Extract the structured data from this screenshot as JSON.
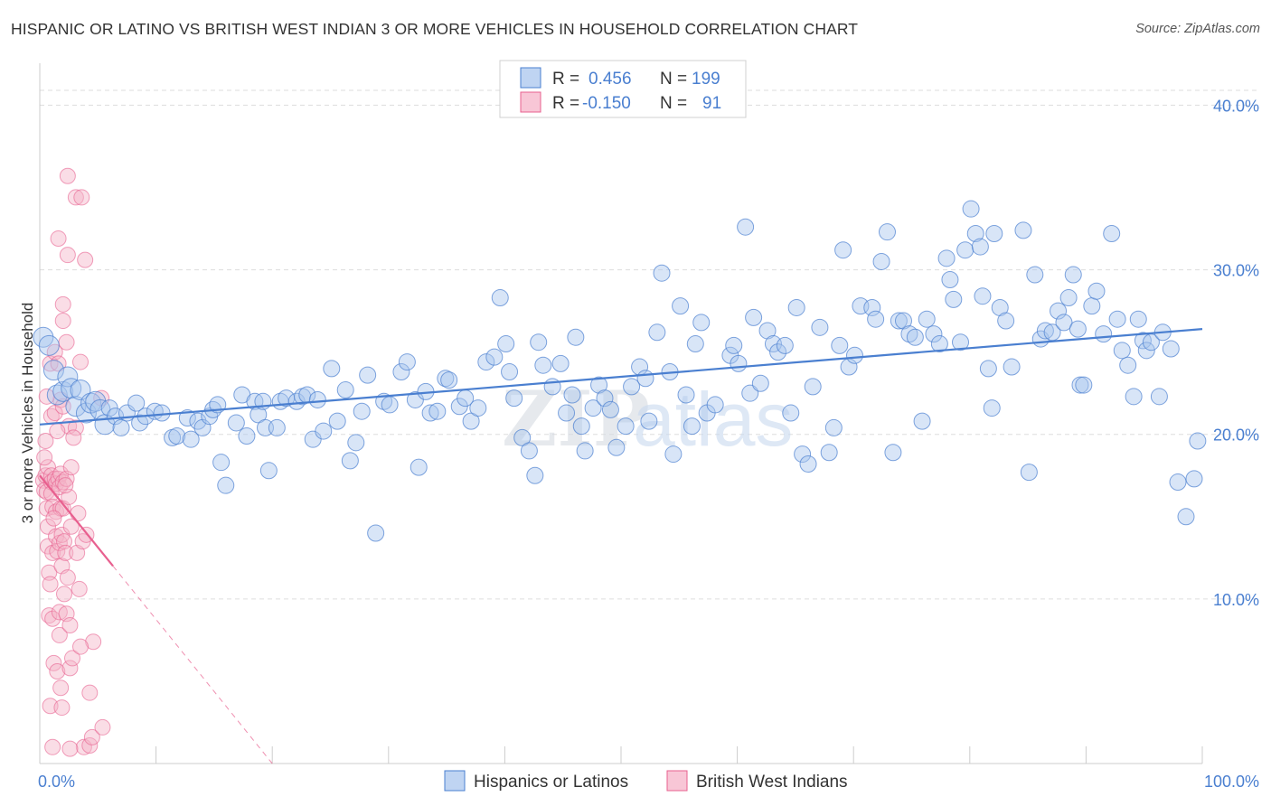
{
  "title": "HISPANIC OR LATINO VS BRITISH WEST INDIAN 3 OR MORE VEHICLES IN HOUSEHOLD CORRELATION CHART",
  "source": "Source: ZipAtlas.com",
  "watermark": {
    "zip": "ZIP",
    "atlas": "atlas"
  },
  "colors": {
    "blue": "#4a7fd0",
    "blue_fill": "#a9c6ee",
    "pink": "#e8608f",
    "pink_fill": "#f5b3c8",
    "grid": "#dddddd"
  },
  "legend": {
    "rows": [
      {
        "r_label": "R =",
        "r_value": "0.456",
        "n_label": "N =",
        "n_value": "199"
      },
      {
        "r_label": "R =",
        "r_value": "-0.150",
        "n_label": "N =",
        "n_value": "91"
      }
    ]
  },
  "bottom_legend": [
    "Hispanics or Latinos",
    "British West Indians"
  ],
  "chart_data": {
    "type": "scatter",
    "title": "HISPANIC OR LATINO VS BRITISH WEST INDIAN 3 OR MORE VEHICLES IN HOUSEHOLD CORRELATION CHART",
    "xlabel": "",
    "ylabel": "3 or more Vehicles in Household",
    "xlim": [
      0,
      100
    ],
    "ylim": [
      0,
      42
    ],
    "x_tick_labels": [
      "0.0%",
      "100.0%"
    ],
    "y_ticks": [
      10,
      20,
      30,
      40
    ],
    "y_tick_labels": [
      "10.0%",
      "20.0%",
      "30.0%",
      "40.0%"
    ],
    "grid": true,
    "legend_position": "top-center",
    "series": [
      {
        "name": "Hispanics or Latinos",
        "color": "#4a7fd0",
        "r": 0.456,
        "n": 199,
        "trend": {
          "x": [
            0,
            100
          ],
          "y": [
            20.6,
            26.4
          ]
        },
        "points": [
          [
            0.3,
            25.9
          ],
          [
            0.8,
            25.4
          ],
          [
            1.2,
            23.9
          ],
          [
            1.5,
            22.4
          ],
          [
            2,
            22.6
          ],
          [
            2.4,
            23.5
          ],
          [
            2.7,
            22.8
          ],
          [
            3.1,
            21.7
          ],
          [
            3.5,
            22.7
          ],
          [
            4,
            21.3
          ],
          [
            4.4,
            21.9
          ],
          [
            4.8,
            22
          ],
          [
            5.2,
            21.5
          ],
          [
            5.6,
            20.6
          ],
          [
            6,
            21.6
          ],
          [
            6.5,
            21.1
          ],
          [
            7,
            20.4
          ],
          [
            7.5,
            21.3
          ],
          [
            8.3,
            21.9
          ],
          [
            8.6,
            20.7
          ],
          [
            9.1,
            21.1
          ],
          [
            9.9,
            21.4
          ],
          [
            10.5,
            21.3
          ],
          [
            11.4,
            19.8
          ],
          [
            11.8,
            19.9
          ],
          [
            12.7,
            21
          ],
          [
            13,
            19.7
          ],
          [
            13.6,
            20.8
          ],
          [
            14,
            20.4
          ],
          [
            14.6,
            21.1
          ],
          [
            14.9,
            21.5
          ],
          [
            15.3,
            21.8
          ],
          [
            15.6,
            18.3
          ],
          [
            16,
            16.9
          ],
          [
            16.9,
            20.7
          ],
          [
            17.4,
            22.4
          ],
          [
            17.8,
            19.9
          ],
          [
            18.5,
            22
          ],
          [
            18.8,
            21.2
          ],
          [
            19.2,
            22
          ],
          [
            19.4,
            20.4
          ],
          [
            19.7,
            17.8
          ],
          [
            20.4,
            20.4
          ],
          [
            20.7,
            22
          ],
          [
            21.2,
            22.2
          ],
          [
            22.1,
            22
          ],
          [
            22.6,
            22.3
          ],
          [
            23,
            22.4
          ],
          [
            23.5,
            19.7
          ],
          [
            23.9,
            22.1
          ],
          [
            24.4,
            20.2
          ],
          [
            25.1,
            24
          ],
          [
            25.6,
            20.8
          ],
          [
            26.3,
            22.7
          ],
          [
            26.7,
            18.4
          ],
          [
            27.2,
            19.5
          ],
          [
            27.7,
            21.4
          ],
          [
            28.2,
            23.6
          ],
          [
            28.9,
            14
          ],
          [
            29.6,
            22
          ],
          [
            30.1,
            21.8
          ],
          [
            31.1,
            23.8
          ],
          [
            31.6,
            24.4
          ],
          [
            32.3,
            22.1
          ],
          [
            32.6,
            18
          ],
          [
            33.2,
            22.6
          ],
          [
            33.6,
            21.3
          ],
          [
            34.2,
            21.4
          ],
          [
            34.9,
            23.4
          ],
          [
            35.2,
            23.3
          ],
          [
            36.1,
            21.7
          ],
          [
            36.6,
            22.2
          ],
          [
            37.1,
            20.8
          ],
          [
            37.7,
            21.6
          ],
          [
            38.4,
            24.4
          ],
          [
            39.1,
            24.7
          ],
          [
            39.6,
            28.3
          ],
          [
            40.1,
            25.5
          ],
          [
            40.4,
            23.8
          ],
          [
            40.8,
            22.2
          ],
          [
            41.5,
            19.8
          ],
          [
            42.1,
            19
          ],
          [
            42.6,
            17.5
          ],
          [
            42.9,
            25.6
          ],
          [
            43.3,
            24.2
          ],
          [
            44.1,
            22.9
          ],
          [
            44.8,
            24.3
          ],
          [
            45.3,
            21.3
          ],
          [
            45.8,
            22.4
          ],
          [
            46.1,
            25.9
          ],
          [
            46.6,
            20.5
          ],
          [
            46.9,
            19
          ],
          [
            47.6,
            21.6
          ],
          [
            48.1,
            23
          ],
          [
            48.6,
            22.2
          ],
          [
            49.1,
            21.5
          ],
          [
            49.6,
            19.2
          ],
          [
            50.4,
            20.5
          ],
          [
            50.9,
            22.9
          ],
          [
            51.6,
            24.1
          ],
          [
            52.1,
            23.4
          ],
          [
            52.4,
            20.8
          ],
          [
            53.1,
            26.2
          ],
          [
            53.5,
            29.8
          ],
          [
            54.2,
            23.8
          ],
          [
            54.5,
            18.8
          ],
          [
            55.1,
            27.8
          ],
          [
            55.6,
            22.4
          ],
          [
            56.1,
            20.5
          ],
          [
            56.4,
            25.5
          ],
          [
            56.9,
            26.8
          ],
          [
            57.4,
            21.3
          ],
          [
            58.1,
            21.8
          ],
          [
            59.4,
            24.8
          ],
          [
            59.7,
            25.4
          ],
          [
            60.1,
            24.3
          ],
          [
            60.7,
            32.6
          ],
          [
            61.1,
            22.5
          ],
          [
            61.4,
            27.1
          ],
          [
            62,
            23.1
          ],
          [
            62.6,
            26.3
          ],
          [
            63.1,
            25.5
          ],
          [
            63.5,
            25
          ],
          [
            64.1,
            25.4
          ],
          [
            64.6,
            21.3
          ],
          [
            65.1,
            27.7
          ],
          [
            65.6,
            18.8
          ],
          [
            66.1,
            18.2
          ],
          [
            66.5,
            22.9
          ],
          [
            67.1,
            26.5
          ],
          [
            67.9,
            18.9
          ],
          [
            68.3,
            20.4
          ],
          [
            68.8,
            25.4
          ],
          [
            69.1,
            31.2
          ],
          [
            69.6,
            24.1
          ],
          [
            70.1,
            24.8
          ],
          [
            70.6,
            27.8
          ],
          [
            71.6,
            27.7
          ],
          [
            71.9,
            27
          ],
          [
            72.4,
            30.5
          ],
          [
            72.9,
            32.3
          ],
          [
            73.4,
            18.9
          ],
          [
            73.9,
            26.9
          ],
          [
            74.3,
            26.9
          ],
          [
            74.8,
            26.1
          ],
          [
            75.3,
            25.9
          ],
          [
            75.9,
            20.8
          ],
          [
            76.3,
            27
          ],
          [
            76.9,
            26.1
          ],
          [
            77.4,
            25.5
          ],
          [
            78,
            30.7
          ],
          [
            78.3,
            29.4
          ],
          [
            78.6,
            28.2
          ],
          [
            79.2,
            25.6
          ],
          [
            79.6,
            31.2
          ],
          [
            80.1,
            33.7
          ],
          [
            80.5,
            32.2
          ],
          [
            80.9,
            31.4
          ],
          [
            81.1,
            28.4
          ],
          [
            81.6,
            24
          ],
          [
            81.9,
            21.6
          ],
          [
            82.1,
            32.2
          ],
          [
            82.6,
            27.7
          ],
          [
            83.1,
            26.9
          ],
          [
            83.6,
            24.1
          ],
          [
            84.6,
            32.4
          ],
          [
            85.1,
            17.7
          ],
          [
            85.6,
            29.7
          ],
          [
            86.1,
            25.8
          ],
          [
            86.5,
            26.3
          ],
          [
            87.1,
            26.2
          ],
          [
            87.6,
            27.5
          ],
          [
            88.1,
            26.8
          ],
          [
            88.5,
            28.3
          ],
          [
            88.9,
            29.7
          ],
          [
            89.3,
            26.4
          ],
          [
            89.5,
            23
          ],
          [
            89.8,
            23
          ],
          [
            90.5,
            27.8
          ],
          [
            90.9,
            28.7
          ],
          [
            91.5,
            26.1
          ],
          [
            92.2,
            32.2
          ],
          [
            92.7,
            27
          ],
          [
            93.1,
            25.1
          ],
          [
            93.6,
            24.2
          ],
          [
            94.1,
            22.3
          ],
          [
            94.5,
            27
          ],
          [
            94.9,
            25.7
          ],
          [
            95.2,
            25.1
          ],
          [
            95.6,
            25.6
          ],
          [
            96.3,
            22.3
          ],
          [
            96.6,
            26.2
          ],
          [
            97.3,
            25.2
          ],
          [
            97.9,
            17.1
          ],
          [
            98.6,
            15
          ],
          [
            99.3,
            17.3
          ],
          [
            99.6,
            19.6
          ]
        ]
      },
      {
        "name": "British West Indians",
        "color": "#e8608f",
        "r": -0.15,
        "n": 91,
        "trend": {
          "x": [
            0,
            6.3
          ],
          "y": [
            17.5,
            12.0
          ]
        },
        "trend_extension": {
          "x": [
            6.3,
            20
          ],
          "y": [
            12.0,
            0
          ]
        },
        "points": [
          [
            0.3,
            17.2
          ],
          [
            0.4,
            16.6
          ],
          [
            0.5,
            19.6
          ],
          [
            0.5,
            17.5
          ],
          [
            0.6,
            16.5
          ],
          [
            0.6,
            15.5
          ],
          [
            0.7,
            18
          ],
          [
            0.7,
            14.4
          ],
          [
            0.7,
            13.2
          ],
          [
            0.8,
            11.6
          ],
          [
            0.8,
            9
          ],
          [
            0.9,
            3.5
          ],
          [
            0.9,
            24.3
          ],
          [
            1,
            21.1
          ],
          [
            1,
            17.5
          ],
          [
            1,
            17.1
          ],
          [
            1,
            16.4
          ],
          [
            1.1,
            15.6
          ],
          [
            1.1,
            12.8
          ],
          [
            1.1,
            8.8
          ],
          [
            1.2,
            6.1
          ],
          [
            1.3,
            25
          ],
          [
            1.3,
            21.3
          ],
          [
            1.3,
            17.3
          ],
          [
            1.4,
            17
          ],
          [
            1.4,
            15.3
          ],
          [
            1.4,
            13.8
          ],
          [
            1.5,
            12.9
          ],
          [
            1.5,
            5.6
          ],
          [
            1.6,
            31.9
          ],
          [
            1.6,
            24.3
          ],
          [
            1.6,
            17.3
          ],
          [
            1.7,
            16.8
          ],
          [
            1.7,
            13.4
          ],
          [
            1.7,
            9.2
          ],
          [
            1.7,
            7.8
          ],
          [
            1.8,
            22.1
          ],
          [
            1.8,
            17.6
          ],
          [
            1.8,
            15.5
          ],
          [
            1.9,
            13.9
          ],
          [
            1.9,
            12
          ],
          [
            1.9,
            3.4
          ],
          [
            2,
            27.9
          ],
          [
            2,
            26.9
          ],
          [
            2,
            21.7
          ],
          [
            2,
            17.1
          ],
          [
            2,
            15.5
          ],
          [
            2.1,
            13.5
          ],
          [
            2.1,
            10.3
          ],
          [
            2.2,
            12.8
          ],
          [
            2.3,
            25.6
          ],
          [
            2.3,
            17.3
          ],
          [
            2.3,
            9.1
          ],
          [
            2.4,
            35.7
          ],
          [
            2.4,
            30.9
          ],
          [
            2.5,
            20.5
          ],
          [
            2.5,
            16.2
          ],
          [
            2.6,
            8.4
          ],
          [
            2.6,
            5.8
          ],
          [
            2.7,
            18
          ],
          [
            2.7,
            14.4
          ],
          [
            2.8,
            6.4
          ],
          [
            3.1,
            34.4
          ],
          [
            3.1,
            20.4
          ],
          [
            3.2,
            12.8
          ],
          [
            3.4,
            10.6
          ],
          [
            3.5,
            24.4
          ],
          [
            3.6,
            34.4
          ],
          [
            3.7,
            13.5
          ],
          [
            3.8,
            1
          ],
          [
            3.9,
            30.6
          ],
          [
            4,
            13.9
          ],
          [
            4.3,
            4.3
          ],
          [
            4.3,
            1.1
          ],
          [
            4.5,
            1.6
          ],
          [
            4.6,
            7.4
          ],
          [
            5.3,
            22.2
          ],
          [
            5.4,
            2.2
          ],
          [
            1.1,
            1
          ],
          [
            2.6,
            0.9
          ],
          [
            0.6,
            22.3
          ],
          [
            1.5,
            20.2
          ],
          [
            2.9,
            19.8
          ],
          [
            0.4,
            18.6
          ],
          [
            2.2,
            16.9
          ],
          [
            1.2,
            14.9
          ],
          [
            3.3,
            15.2
          ],
          [
            0.9,
            10.9
          ],
          [
            2.4,
            11.3
          ],
          [
            1.8,
            4.6
          ],
          [
            3.5,
            7.1
          ]
        ]
      }
    ]
  }
}
